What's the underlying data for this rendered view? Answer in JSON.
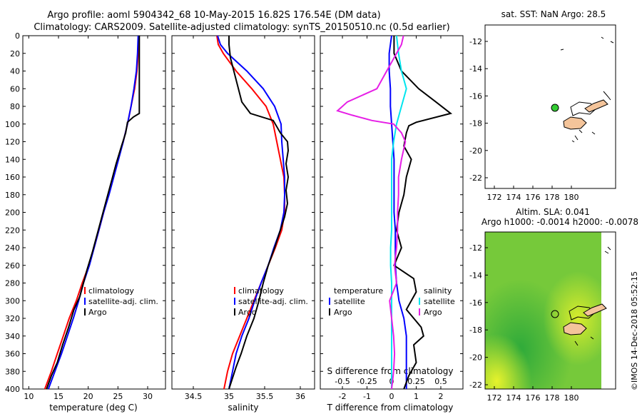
{
  "header": {
    "title_line1": "Argo profile: aoml 5904342_68 10-May-2015 16.82S 176.54E (DM data)",
    "title_line2": "Climatology: CARS2009. Satellite-adjusted climatology: synTS_20150510.nc (0.5d earlier)"
  },
  "colors": {
    "climatology": "#ff0000",
    "satellite": "#0000ff",
    "argo": "#000000",
    "s_satellite": "#00e5ee",
    "s_climatology": "#e61ee6",
    "land": "#f4c49a",
    "argo_marker": "#33cc33"
  },
  "chart_data": [
    {
      "type": "line",
      "id": "temperature",
      "xlabel": "temperature (deg C)",
      "ylabel": "",
      "xlim": [
        9,
        33
      ],
      "ylim": [
        400,
        0
      ],
      "xticks": [
        10,
        15,
        20,
        25,
        30
      ],
      "yticks": [
        0,
        20,
        40,
        60,
        80,
        100,
        120,
        140,
        160,
        180,
        200,
        220,
        240,
        260,
        280,
        300,
        320,
        340,
        360,
        380,
        400
      ],
      "legend": [
        "climatology",
        "satellite-adj. clim.",
        "Argo"
      ],
      "series": [
        {
          "name": "climatology",
          "color": "#ff0000",
          "points": [
            [
              28.5,
              0
            ],
            [
              28.4,
              20
            ],
            [
              28.2,
              40
            ],
            [
              27.8,
              60
            ],
            [
              27.2,
              80
            ],
            [
              26.6,
              100
            ],
            [
              25.9,
              120
            ],
            [
              25.0,
              140
            ],
            [
              24.2,
              160
            ],
            [
              23.4,
              180
            ],
            [
              22.6,
              200
            ],
            [
              21.8,
              220
            ],
            [
              21.0,
              240
            ],
            [
              20.1,
              260
            ],
            [
              19.0,
              280
            ],
            [
              18.0,
              300
            ],
            [
              16.8,
              320
            ],
            [
              15.8,
              340
            ],
            [
              14.8,
              360
            ],
            [
              13.8,
              380
            ],
            [
              12.7,
              400
            ]
          ]
        },
        {
          "name": "satellite-adj. clim.",
          "color": "#0000ff",
          "points": [
            [
              28.4,
              0
            ],
            [
              28.3,
              20
            ],
            [
              28.1,
              40
            ],
            [
              27.7,
              60
            ],
            [
              27.2,
              80
            ],
            [
              26.6,
              100
            ],
            [
              25.9,
              120
            ],
            [
              25.1,
              140
            ],
            [
              24.3,
              160
            ],
            [
              23.5,
              180
            ],
            [
              22.6,
              200
            ],
            [
              21.8,
              220
            ],
            [
              21.0,
              240
            ],
            [
              20.2,
              260
            ],
            [
              19.2,
              280
            ],
            [
              18.4,
              300
            ],
            [
              17.5,
              320
            ],
            [
              16.5,
              340
            ],
            [
              15.5,
              360
            ],
            [
              14.4,
              380
            ],
            [
              13.3,
              400
            ]
          ]
        },
        {
          "name": "Argo",
          "color": "#000000",
          "points": [
            [
              28.6,
              0
            ],
            [
              28.6,
              30
            ],
            [
              28.6,
              60
            ],
            [
              28.6,
              88
            ],
            [
              27.6,
              92
            ],
            [
              26.6,
              98
            ],
            [
              26.3,
              110
            ],
            [
              25.6,
              125
            ],
            [
              24.7,
              145
            ],
            [
              23.9,
              165
            ],
            [
              23.1,
              185
            ],
            [
              22.3,
              205
            ],
            [
              21.5,
              225
            ],
            [
              20.7,
              245
            ],
            [
              19.8,
              265
            ],
            [
              19.2,
              280
            ],
            [
              18.6,
              295
            ],
            [
              17.6,
              310
            ],
            [
              16.7,
              330
            ],
            [
              15.7,
              350
            ],
            [
              14.8,
              370
            ],
            [
              13.8,
              385
            ],
            [
              13.0,
              400
            ]
          ]
        }
      ]
    },
    {
      "type": "line",
      "id": "salinity",
      "xlabel": "salinity",
      "ylabel": "",
      "xlim": [
        34.2,
        36.2
      ],
      "ylim": [
        400,
        0
      ],
      "xticks": [
        34.5,
        35,
        35.5,
        36
      ],
      "xticklabels": [
        "34.5",
        "35",
        "35.5",
        "36"
      ],
      "legend": [
        "climatology",
        "satellite-adj. clim.",
        "Argo"
      ],
      "series": [
        {
          "name": "climatology",
          "color": "#ff0000",
          "points": [
            [
              34.83,
              0
            ],
            [
              34.85,
              10
            ],
            [
              34.92,
              20
            ],
            [
              35.1,
              40
            ],
            [
              35.32,
              60
            ],
            [
              35.52,
              80
            ],
            [
              35.62,
              100
            ],
            [
              35.67,
              120
            ],
            [
              35.72,
              140
            ],
            [
              35.77,
              160
            ],
            [
              35.78,
              180
            ],
            [
              35.78,
              200
            ],
            [
              35.74,
              220
            ],
            [
              35.65,
              240
            ],
            [
              35.55,
              260
            ],
            [
              35.45,
              280
            ],
            [
              35.35,
              300
            ],
            [
              35.25,
              320
            ],
            [
              35.15,
              340
            ],
            [
              35.05,
              360
            ],
            [
              34.98,
              380
            ],
            [
              34.93,
              400
            ]
          ]
        },
        {
          "name": "satellite-adj. clim.",
          "color": "#0000ff",
          "points": [
            [
              34.84,
              0
            ],
            [
              34.88,
              10
            ],
            [
              34.98,
              20
            ],
            [
              35.25,
              40
            ],
            [
              35.48,
              60
            ],
            [
              35.64,
              80
            ],
            [
              35.73,
              100
            ],
            [
              35.74,
              120
            ],
            [
              35.76,
              140
            ],
            [
              35.78,
              160
            ],
            [
              35.78,
              180
            ],
            [
              35.77,
              200
            ],
            [
              35.72,
              220
            ],
            [
              35.63,
              240
            ],
            [
              35.55,
              260
            ],
            [
              35.45,
              280
            ],
            [
              35.36,
              300
            ],
            [
              35.28,
              320
            ],
            [
              35.18,
              340
            ],
            [
              35.1,
              360
            ],
            [
              35.05,
              380
            ],
            [
              35.0,
              400
            ]
          ]
        },
        {
          "name": "Argo",
          "color": "#000000",
          "points": [
            [
              35.0,
              0
            ],
            [
              35.0,
              10
            ],
            [
              35.02,
              25
            ],
            [
              35.1,
              50
            ],
            [
              35.18,
              75
            ],
            [
              35.3,
              88
            ],
            [
              35.62,
              96
            ],
            [
              35.72,
              110
            ],
            [
              35.82,
              120
            ],
            [
              35.83,
              130
            ],
            [
              35.8,
              145
            ],
            [
              35.83,
              160
            ],
            [
              35.8,
              175
            ],
            [
              35.82,
              190
            ],
            [
              35.78,
              205
            ],
            [
              35.72,
              220
            ],
            [
              35.64,
              240
            ],
            [
              35.55,
              260
            ],
            [
              35.48,
              280
            ],
            [
              35.42,
              300
            ],
            [
              35.35,
              320
            ],
            [
              35.25,
              340
            ],
            [
              35.17,
              360
            ],
            [
              35.1,
              375
            ],
            [
              35.04,
              390
            ],
            [
              35.0,
              400
            ]
          ]
        }
      ]
    },
    {
      "type": "line",
      "id": "differences",
      "xlabel": "T difference from climatology",
      "ylabel": "",
      "xlim": [
        -2.9,
        2.9
      ],
      "ylim": [
        400,
        0
      ],
      "xticks": [
        -2,
        -1,
        0,
        1,
        2
      ],
      "top_axis": {
        "label": "S difference from climatology",
        "xlim": [
          -0.725,
          0.725
        ],
        "ticks": [
          -0.5,
          -0.25,
          0,
          0.25,
          0.5
        ],
        "ticklabels": [
          "-0.5",
          "-0.25",
          "0",
          "0.25",
          "0.5"
        ]
      },
      "legend_temperature_title": "temperature",
      "legend_salinity_title": "salinity",
      "legend_temperature": [
        "satellite",
        "Argo"
      ],
      "legend_salinity": [
        "satellite",
        "Argo"
      ],
      "series": [
        {
          "name": "T satellite",
          "color": "#0000ff",
          "axis": "T",
          "points": [
            [
              0,
              0
            ],
            [
              -0.1,
              20
            ],
            [
              -0.1,
              40
            ],
            [
              -0.05,
              60
            ],
            [
              -0.05,
              80
            ],
            [
              0,
              100
            ],
            [
              0.05,
              120
            ],
            [
              0.1,
              140
            ],
            [
              0.1,
              160
            ],
            [
              0.1,
              180
            ],
            [
              0.1,
              200
            ],
            [
              0.15,
              220
            ],
            [
              0.15,
              240
            ],
            [
              0.15,
              260
            ],
            [
              0.2,
              280
            ],
            [
              0.3,
              300
            ],
            [
              0.5,
              320
            ],
            [
              0.6,
              340
            ],
            [
              0.6,
              360
            ],
            [
              0.6,
              380
            ],
            [
              0.6,
              400
            ]
          ]
        },
        {
          "name": "T Argo",
          "color": "#000000",
          "axis": "T",
          "points": [
            [
              0.1,
              0
            ],
            [
              0.1,
              20
            ],
            [
              0.4,
              40
            ],
            [
              1.1,
              60
            ],
            [
              1.8,
              75
            ],
            [
              2.4,
              88
            ],
            [
              1.0,
              98
            ],
            [
              0.7,
              102
            ],
            [
              0.6,
              110
            ],
            [
              0.5,
              125
            ],
            [
              0.8,
              140
            ],
            [
              0.6,
              160
            ],
            [
              0.5,
              180
            ],
            [
              0.3,
              200
            ],
            [
              0.2,
              220
            ],
            [
              0.4,
              240
            ],
            [
              0.1,
              260
            ],
            [
              0.9,
              275
            ],
            [
              1.0,
              290
            ],
            [
              0.6,
              310
            ],
            [
              1.2,
              330
            ],
            [
              1.3,
              340
            ],
            [
              0.9,
              350
            ],
            [
              1.0,
              370
            ],
            [
              0.7,
              385
            ],
            [
              0.5,
              400
            ]
          ]
        },
        {
          "name": "S satellite",
          "color": "#00e5ee",
          "axis": "S",
          "points": [
            [
              0.05,
              0
            ],
            [
              0.07,
              20
            ],
            [
              0.1,
              40
            ],
            [
              0.15,
              60
            ],
            [
              0.1,
              80
            ],
            [
              0.05,
              100
            ],
            [
              0.02,
              120
            ],
            [
              0.0,
              140
            ],
            [
              0.0,
              160
            ],
            [
              0.0,
              180
            ],
            [
              0.0,
              200
            ],
            [
              0.0,
              220
            ],
            [
              -0.01,
              240
            ],
            [
              -0.01,
              260
            ],
            [
              0.0,
              280
            ],
            [
              0.0,
              300
            ],
            [
              0.0,
              320
            ],
            [
              0.0,
              340
            ],
            [
              0.0,
              360
            ],
            [
              0.0,
              380
            ],
            [
              0.0,
              400
            ]
          ]
        },
        {
          "name": "S Argo",
          "color": "#e61ee6",
          "axis": "S",
          "points": [
            [
              0.12,
              0
            ],
            [
              0.1,
              10
            ],
            [
              0.05,
              20
            ],
            [
              -0.05,
              40
            ],
            [
              -0.15,
              60
            ],
            [
              -0.45,
              75
            ],
            [
              -0.55,
              85
            ],
            [
              -0.4,
              90
            ],
            [
              -0.2,
              96
            ],
            [
              0.02,
              100
            ],
            [
              0.1,
              110
            ],
            [
              0.14,
              120
            ],
            [
              0.1,
              140
            ],
            [
              0.07,
              160
            ],
            [
              0.07,
              180
            ],
            [
              0.06,
              200
            ],
            [
              0.06,
              220
            ],
            [
              0.05,
              240
            ],
            [
              0.03,
              260
            ],
            [
              0.05,
              280
            ],
            [
              -0.02,
              300
            ],
            [
              0.0,
              320
            ],
            [
              0.02,
              340
            ],
            [
              0.03,
              360
            ],
            [
              0.02,
              380
            ],
            [
              0.0,
              400
            ]
          ]
        }
      ]
    }
  ],
  "map_sst": {
    "title": "sat. SST: NaN Argo: 28.5",
    "lon_ticks": [
      "172",
      "174",
      "176",
      "178",
      "180"
    ],
    "lat_ticks": [
      "-12",
      "-14",
      "-16",
      "-18",
      "-20",
      "-22"
    ]
  },
  "map_sla": {
    "title_line1": "Altim. SLA: 0.041",
    "title_line2": "Argo h1000: -0.0014 h2000: -0.0078",
    "lon_ticks": [
      "172",
      "174",
      "176",
      "178",
      "180"
    ],
    "lat_ticks": [
      "-12",
      "-14",
      "-16",
      "-18",
      "-20",
      "-22"
    ]
  },
  "footer": {
    "credit": "©IMOS 14-Dec-2018 05:52:15"
  }
}
